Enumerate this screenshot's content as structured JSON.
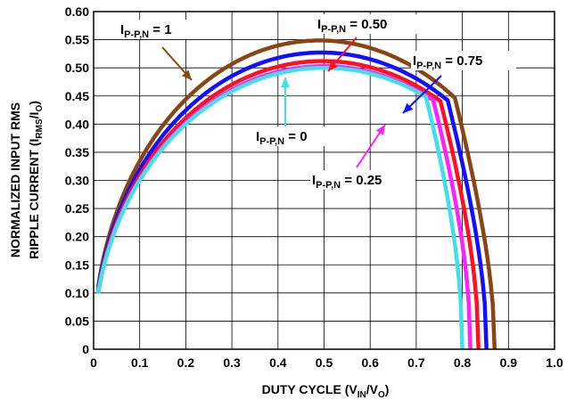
{
  "chart_data": {
    "type": "line",
    "xlabel": {
      "main": "DUTY CYCLE (V",
      "sub1": "IN",
      "mid": "/V",
      "sub2": "O",
      "end": ")"
    },
    "ylabel": {
      "line1": "NORMALIZED INPUT RMS",
      "line2_main": "RIPPLE CURRENT (I",
      "line2_sub": "RMS",
      "line2_end": "/I",
      "line2_sub2": "O",
      "line2_close": ")"
    },
    "xlim": [
      0,
      1.0
    ],
    "ylim": [
      0,
      0.6
    ],
    "xticks": [
      "0",
      "0.1",
      "0.2",
      "0.3",
      "0.4",
      "0.5",
      "0.6",
      "0.7",
      "0.8",
      "0.9",
      "1.0"
    ],
    "yticks": [
      "0",
      "0.05",
      "0.10",
      "0.15",
      "0.20",
      "0.25",
      "0.30",
      "0.35",
      "0.40",
      "0.45",
      "0.50",
      "0.55",
      "0.60"
    ],
    "grid": true,
    "series": [
      {
        "name": "I P-P,N = 0",
        "ripple": 0,
        "color": "#40E0E8"
      },
      {
        "name": "I P-P,N = 0.25",
        "ripple": 0.25,
        "color": "#FF20FF"
      },
      {
        "name": "I P-P,N = 0.50",
        "ripple": 0.5,
        "color": "#FF1020"
      },
      {
        "name": "I P-P,N = 0.75",
        "ripple": 0.75,
        "color": "#1010FF"
      },
      {
        "name": "I P-P,N = 1",
        "ripple": 1,
        "color": "#8B4513"
      }
    ],
    "annotations": [
      {
        "main": "I",
        "sub": "P-P,N",
        "value": " = 1",
        "color": "#8B4513"
      },
      {
        "main": "I",
        "sub": "P-P,N",
        "value": " = 0.50",
        "color": "#FF1020"
      },
      {
        "main": "I",
        "sub": "P-P,N",
        "value": " = 0.75",
        "color": "#1010FF"
      },
      {
        "main": "I",
        "sub": "P-P,N",
        "value": " = 0",
        "color": "#40E0E8"
      },
      {
        "main": "I",
        "sub": "P-P,N",
        "value": " = 0.25",
        "color": "#FF20FF"
      }
    ]
  }
}
